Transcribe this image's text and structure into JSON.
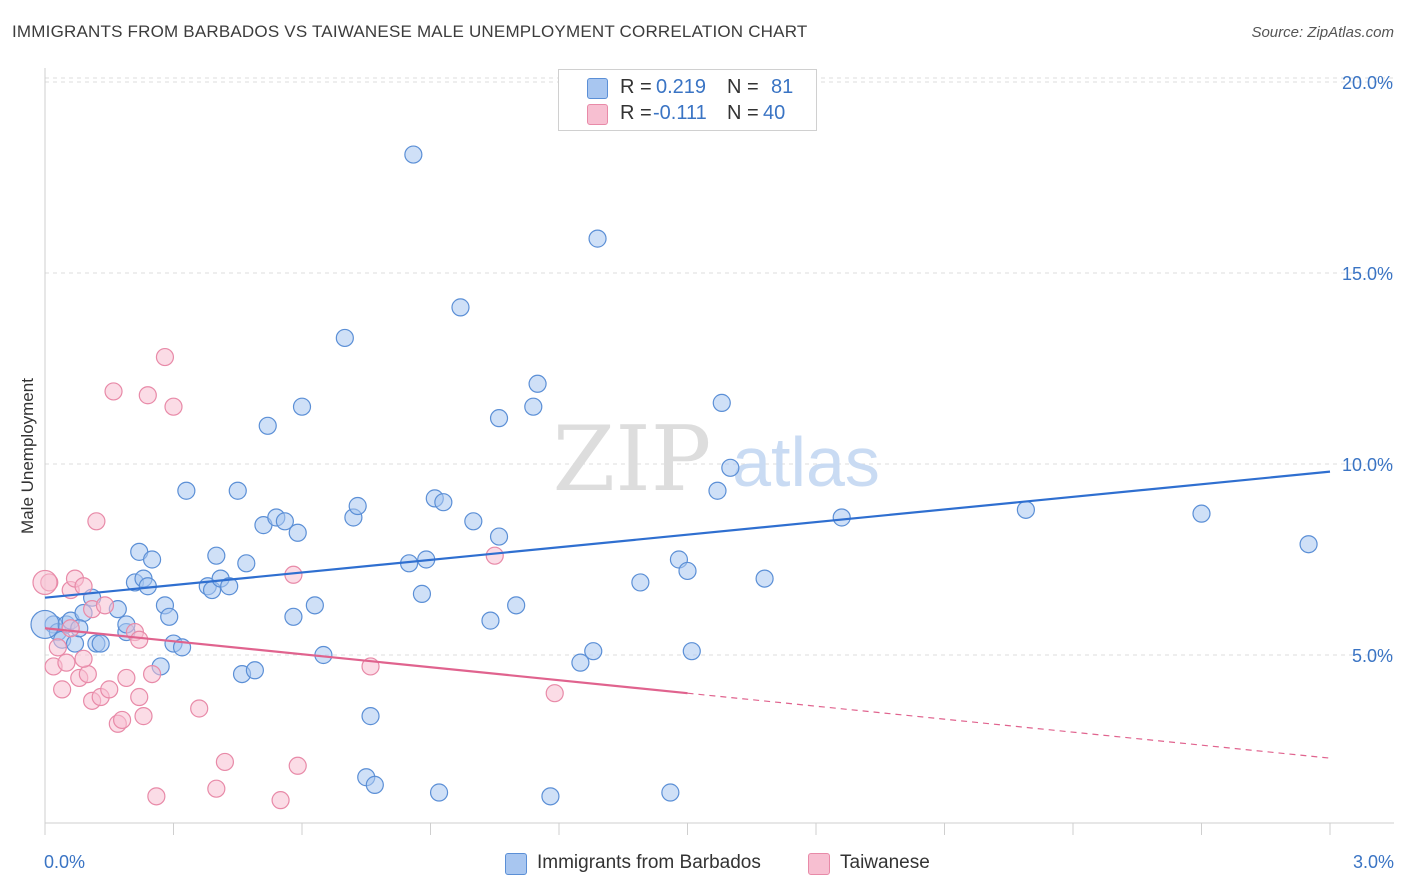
{
  "title": "IMMIGRANTS FROM BARBADOS VS TAIWANESE MALE UNEMPLOYMENT CORRELATION CHART",
  "source": "Source: ZipAtlas.com",
  "watermark": {
    "zip": "ZIP",
    "atlas": "atlas"
  },
  "legend_top": {
    "rows": [
      {
        "r_label": "R =",
        "r_value": "0.219",
        "n_label": "N =",
        "n_value": "81"
      },
      {
        "r_label": "R =",
        "r_value": "-0.111",
        "n_label": "N =",
        "n_value": "40"
      }
    ]
  },
  "legend_bottom": {
    "series1": "Immigrants from Barbados",
    "series2": "Taiwanese"
  },
  "colors": {
    "blue_fill": "#a8c6f0",
    "blue_stroke": "#5b8fd6",
    "blue_line": "#2f6fd0",
    "pink_fill": "#f7bfd1",
    "pink_stroke": "#e88aa8",
    "pink_line": "#e0638e",
    "axis_text": "#3a74c4",
    "grid": "#dddddd"
  },
  "chart_data": {
    "type": "scatter",
    "title": "IMMIGRANTS FROM BARBADOS VS TAIWANESE MALE UNEMPLOYMENT CORRELATION CHART",
    "xlabel": "",
    "ylabel": "Male Unemployment",
    "xlim": [
      0,
      3.0
    ],
    "ylim": [
      0,
      20.5
    ],
    "x_tick_labels": [
      "0.0%",
      "3.0%"
    ],
    "y_ticks": [
      5,
      10,
      15,
      20
    ],
    "y_tick_labels": [
      "5.0%",
      "10.0%",
      "15.0%",
      "20.0%"
    ],
    "grid": true,
    "legend_position": "top-center",
    "series": [
      {
        "name": "Immigrants from Barbados",
        "color": "#a8c6f0",
        "r": 0.219,
        "n": 81,
        "trend": {
          "x": [
            0,
            3.0
          ],
          "y": [
            6.5,
            9.8
          ],
          "dashed_from": null
        },
        "points": [
          [
            0.02,
            5.8
          ],
          [
            0.03,
            5.6
          ],
          [
            0.04,
            5.4
          ],
          [
            0.05,
            5.8
          ],
          [
            0.06,
            5.9
          ],
          [
            0.07,
            5.3
          ],
          [
            0.09,
            6.1
          ],
          [
            0.11,
            6.5
          ],
          [
            0.12,
            5.3
          ],
          [
            0.13,
            5.3
          ],
          [
            0.17,
            6.2
          ],
          [
            0.19,
            5.6
          ],
          [
            0.19,
            5.8
          ],
          [
            0.21,
            6.9
          ],
          [
            0.22,
            7.7
          ],
          [
            0.23,
            7.0
          ],
          [
            0.24,
            6.8
          ],
          [
            0.25,
            7.5
          ],
          [
            0.27,
            4.7
          ],
          [
            0.28,
            6.3
          ],
          [
            0.29,
            6.0
          ],
          [
            0.3,
            5.3
          ],
          [
            0.32,
            5.2
          ],
          [
            0.33,
            9.3
          ],
          [
            0.38,
            6.8
          ],
          [
            0.39,
            6.7
          ],
          [
            0.4,
            7.6
          ],
          [
            0.41,
            7.0
          ],
          [
            0.43,
            6.8
          ],
          [
            0.45,
            9.3
          ],
          [
            0.46,
            4.5
          ],
          [
            0.47,
            7.4
          ],
          [
            0.49,
            4.6
          ],
          [
            0.51,
            8.4
          ],
          [
            0.52,
            11.0
          ],
          [
            0.54,
            8.6
          ],
          [
            0.56,
            8.5
          ],
          [
            0.58,
            6.0
          ],
          [
            0.59,
            8.2
          ],
          [
            0.6,
            11.5
          ],
          [
            0.63,
            6.3
          ],
          [
            0.65,
            5.0
          ],
          [
            0.7,
            13.3
          ],
          [
            0.72,
            8.6
          ],
          [
            0.73,
            8.9
          ],
          [
            0.75,
            1.8
          ],
          [
            0.76,
            3.4
          ],
          [
            0.77,
            1.6
          ],
          [
            0.85,
            7.4
          ],
          [
            0.86,
            18.1
          ],
          [
            0.88,
            6.6
          ],
          [
            0.89,
            7.5
          ],
          [
            0.91,
            9.1
          ],
          [
            0.92,
            1.4
          ],
          [
            0.93,
            9.0
          ],
          [
            0.97,
            14.1
          ],
          [
            1.0,
            8.5
          ],
          [
            1.04,
            5.9
          ],
          [
            1.06,
            8.1
          ],
          [
            1.06,
            11.2
          ],
          [
            1.1,
            6.3
          ],
          [
            1.14,
            11.5
          ],
          [
            1.15,
            12.1
          ],
          [
            1.18,
            1.3
          ],
          [
            1.25,
            4.8
          ],
          [
            1.28,
            5.1
          ],
          [
            1.29,
            15.9
          ],
          [
            1.39,
            6.9
          ],
          [
            1.46,
            1.4
          ],
          [
            1.48,
            7.5
          ],
          [
            1.5,
            7.2
          ],
          [
            1.51,
            5.1
          ],
          [
            1.57,
            9.3
          ],
          [
            1.58,
            11.6
          ],
          [
            1.6,
            9.9
          ],
          [
            1.68,
            7.0
          ],
          [
            1.86,
            8.6
          ],
          [
            2.29,
            8.8
          ],
          [
            2.7,
            8.7
          ],
          [
            2.95,
            7.9
          ],
          [
            0.08,
            5.7
          ]
        ]
      },
      {
        "name": "Taiwanese",
        "color": "#f7bfd1",
        "r": -0.111,
        "n": 40,
        "trend": {
          "x": [
            0,
            3.0
          ],
          "y": [
            5.7,
            2.3
          ],
          "dashed_from": 1.5
        },
        "points": [
          [
            0.01,
            6.9
          ],
          [
            0.02,
            4.7
          ],
          [
            0.03,
            5.2
          ],
          [
            0.04,
            4.1
          ],
          [
            0.05,
            4.8
          ],
          [
            0.06,
            6.7
          ],
          [
            0.06,
            5.7
          ],
          [
            0.07,
            7.0
          ],
          [
            0.08,
            4.4
          ],
          [
            0.09,
            6.8
          ],
          [
            0.1,
            4.5
          ],
          [
            0.11,
            6.2
          ],
          [
            0.11,
            3.8
          ],
          [
            0.12,
            8.5
          ],
          [
            0.13,
            3.9
          ],
          [
            0.14,
            6.3
          ],
          [
            0.15,
            4.1
          ],
          [
            0.16,
            11.9
          ],
          [
            0.17,
            3.2
          ],
          [
            0.18,
            3.3
          ],
          [
            0.19,
            4.4
          ],
          [
            0.21,
            5.6
          ],
          [
            0.22,
            5.4
          ],
          [
            0.22,
            3.9
          ],
          [
            0.23,
            3.4
          ],
          [
            0.24,
            11.8
          ],
          [
            0.25,
            4.5
          ],
          [
            0.26,
            1.3
          ],
          [
            0.28,
            12.8
          ],
          [
            0.3,
            11.5
          ],
          [
            0.36,
            3.6
          ],
          [
            0.4,
            1.5
          ],
          [
            0.42,
            2.2
          ],
          [
            0.55,
            1.2
          ],
          [
            0.58,
            7.1
          ],
          [
            0.59,
            2.1
          ],
          [
            0.76,
            4.7
          ],
          [
            1.05,
            7.6
          ],
          [
            1.19,
            4.0
          ],
          [
            0.09,
            4.9
          ]
        ]
      }
    ]
  }
}
